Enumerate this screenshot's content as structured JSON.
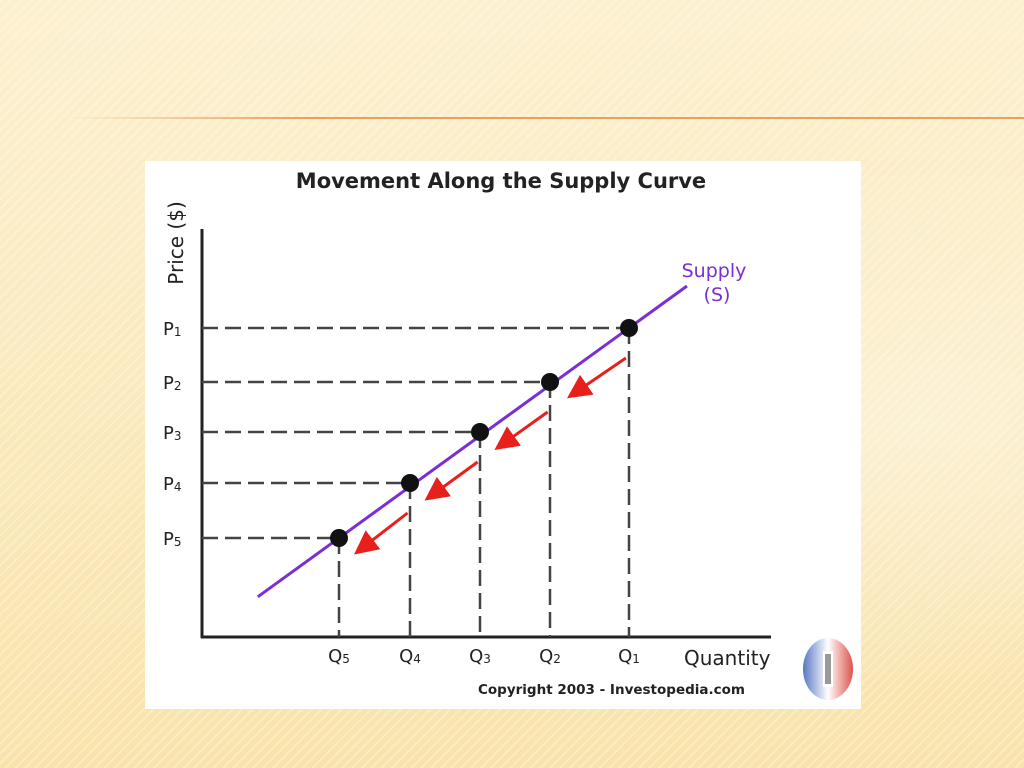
{
  "chart_data": {
    "type": "line",
    "title": "Movement Along the Supply Curve",
    "xlabel": "Quantity",
    "ylabel": "Price ($)",
    "series": [
      {
        "name": "Supply\n(S)",
        "name_lines": [
          "Supply",
          "(S)"
        ]
      }
    ],
    "points": [
      {
        "x": 1,
        "y": 1,
        "x_label": "Q5",
        "y_label": "P5"
      },
      {
        "x": 2,
        "y": 2,
        "x_label": "Q4",
        "y_label": "P4"
      },
      {
        "x": 3,
        "y": 3,
        "x_label": "Q3",
        "y_label": "P3"
      },
      {
        "x": 4,
        "y": 4,
        "x_label": "Q2",
        "y_label": "P2"
      },
      {
        "x": 5,
        "y": 5,
        "x_label": "Q1",
        "y_label": "P1"
      }
    ],
    "x_tick_labels": [
      {
        "base": "Q",
        "sub": "5"
      },
      {
        "base": "Q",
        "sub": "4"
      },
      {
        "base": "Q",
        "sub": "3"
      },
      {
        "base": "Q",
        "sub": "2"
      },
      {
        "base": "Q",
        "sub": "1"
      }
    ],
    "y_tick_labels": [
      {
        "base": "P",
        "sub": "1"
      },
      {
        "base": "P",
        "sub": "2"
      },
      {
        "base": "P",
        "sub": "3"
      },
      {
        "base": "P",
        "sub": "4"
      },
      {
        "base": "P",
        "sub": "5"
      }
    ],
    "xlim": [
      0,
      6
    ],
    "ylim": [
      0,
      6
    ],
    "grid": false,
    "annotations": [
      "arrows pointing down along the curve from Q1/P1 toward Q5/P5"
    ],
    "colors": {
      "supply_line": "#7a2fd6",
      "arrows": "#e8201c",
      "points": "#111111"
    }
  },
  "copyright": "Copyright 2003 - Investopedia.com",
  "logo_icon": "investopedia-logo-icon"
}
